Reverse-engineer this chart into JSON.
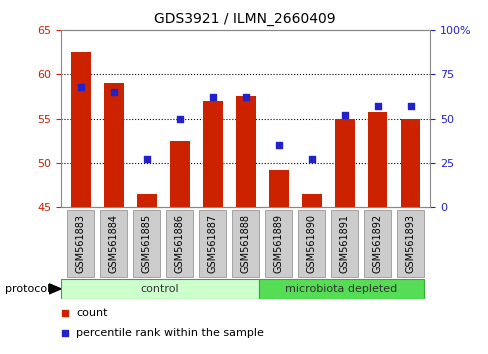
{
  "title": "GDS3921 / ILMN_2660409",
  "samples": [
    "GSM561883",
    "GSM561884",
    "GSM561885",
    "GSM561886",
    "GSM561887",
    "GSM561888",
    "GSM561889",
    "GSM561890",
    "GSM561891",
    "GSM561892",
    "GSM561893"
  ],
  "counts": [
    62.5,
    59.0,
    46.5,
    52.5,
    57.0,
    57.5,
    49.2,
    46.5,
    55.0,
    55.8,
    55.0
  ],
  "percentile_ranks": [
    68,
    65,
    27,
    50,
    62,
    62,
    35,
    27,
    52,
    57,
    57
  ],
  "left_ylim": [
    45,
    65
  ],
  "right_ylim": [
    0,
    100
  ],
  "left_yticks": [
    45,
    50,
    55,
    60,
    65
  ],
  "right_yticks": [
    0,
    25,
    50,
    75,
    100
  ],
  "bar_color": "#cc2200",
  "dot_color": "#2222cc",
  "grid_color": "#000000",
  "n_control": 6,
  "n_microbiota": 5,
  "control_label": "control",
  "microbiota_label": "microbiota depleted",
  "protocol_label": "protocol",
  "legend_count": "count",
  "legend_percentile": "percentile rank within the sample",
  "control_color": "#ccffcc",
  "microbiota_color": "#55dd55",
  "group_bar_bg": "#cccccc",
  "fig_bg": "#ffffff"
}
